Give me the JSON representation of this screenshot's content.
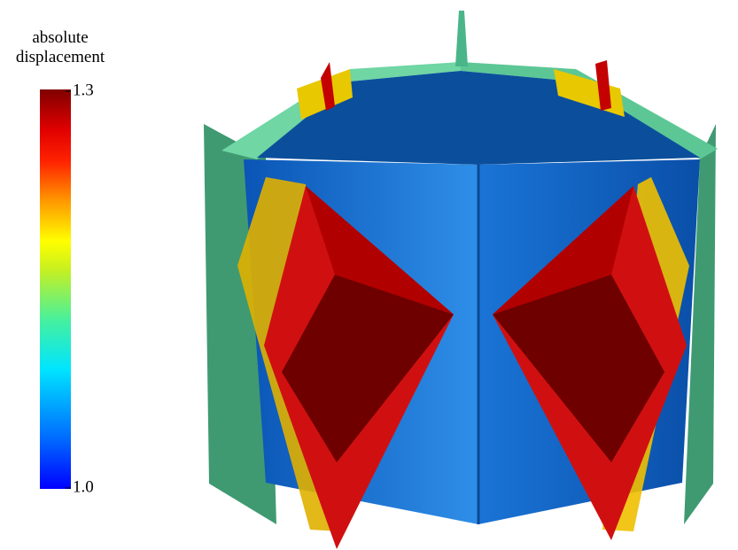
{
  "colorbar": {
    "title": "absolute displacement",
    "lim": [
      1.0,
      1.3
    ],
    "ticks": [
      {
        "value": 1.0,
        "label": "1.0"
      },
      {
        "value": 1.3,
        "label": "1.3"
      }
    ]
  }
}
